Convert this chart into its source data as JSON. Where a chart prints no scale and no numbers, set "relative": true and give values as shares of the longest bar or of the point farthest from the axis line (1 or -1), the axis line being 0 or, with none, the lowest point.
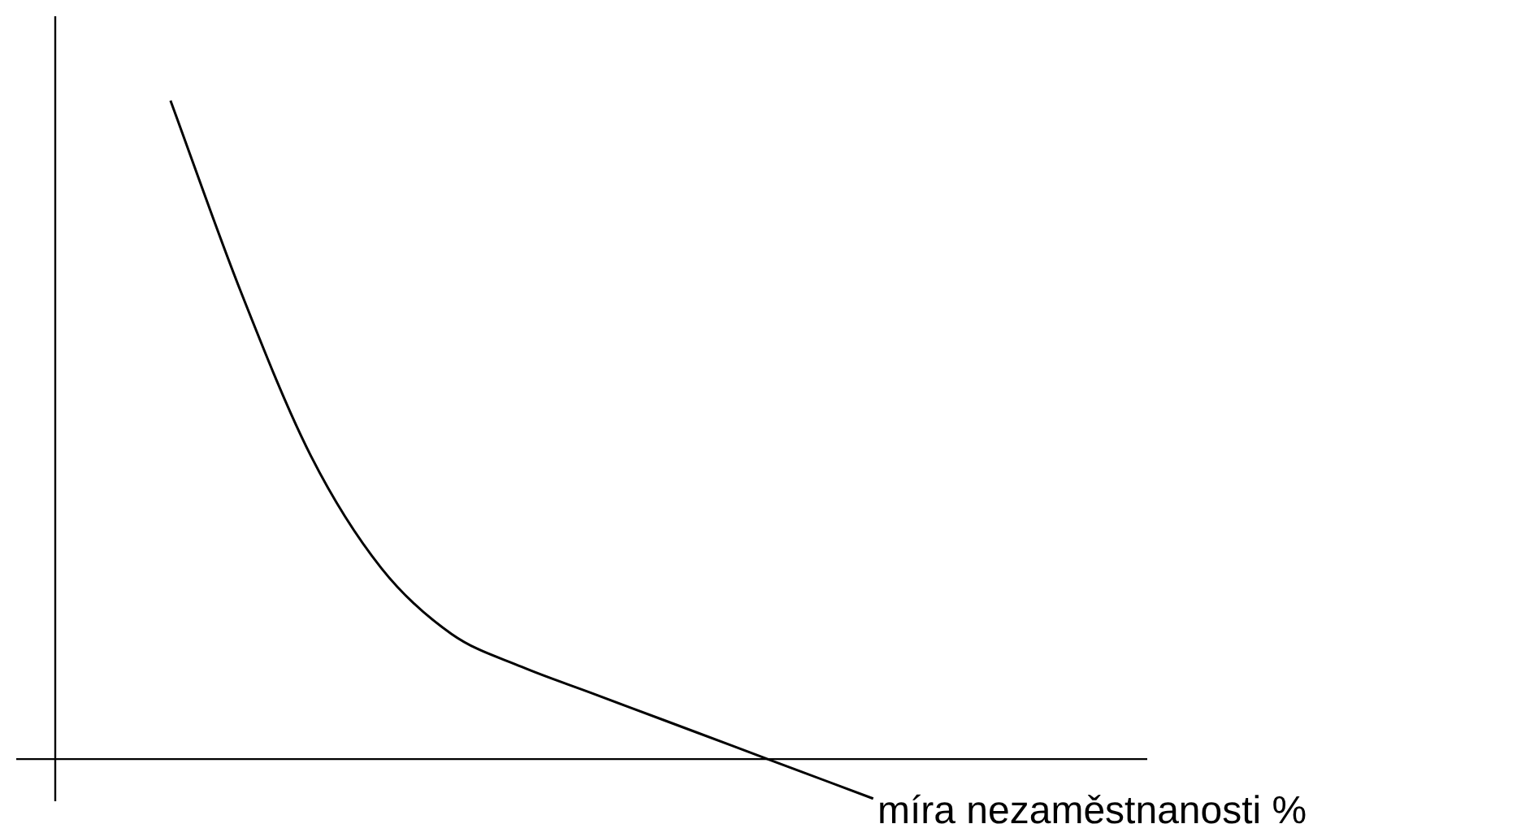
{
  "chart_data": {
    "type": "line",
    "relative": true,
    "xlabel": "míra nezaměstnanosti %",
    "categories": [
      null,
      null,
      null,
      null,
      null,
      null,
      null,
      null,
      null,
      null,
      null
    ],
    "series": [
      {
        "color": "#000000",
        "values": [
          1,
          0.71,
          0.46,
          0.29,
          0.19,
          0.14,
          0.1,
          0.06,
          0.02,
          -0.02,
          -0.06
        ]
      }
    ]
  }
}
